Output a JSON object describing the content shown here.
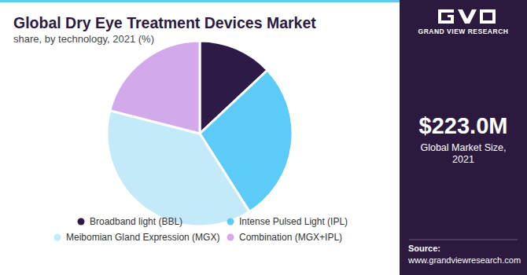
{
  "chart_data": {
    "type": "pie",
    "title": "Global Dry Eye Treatment Devices Market",
    "subtitle": "share, by technology, 2021 (%)",
    "categories": [
      "Broadband light (BBL)",
      "Intense Pulsed Light (IPL)",
      "Meibomian Gland Expression (MGX)",
      "Combination (MGX+IPL)"
    ],
    "values": [
      13,
      28,
      38,
      21
    ],
    "colors": [
      "#2e1a47",
      "#5dcbf7",
      "#c4eaf9",
      "#d2a9ea"
    ],
    "legend": "bottom"
  },
  "side_panel": {
    "brand": "GRAND VIEW RESEARCH",
    "value": "$223.0M",
    "caption": [
      "Global Market Size,",
      "2021"
    ],
    "source_label": "Source:",
    "source_url": "www.grandviewresearch.com"
  }
}
